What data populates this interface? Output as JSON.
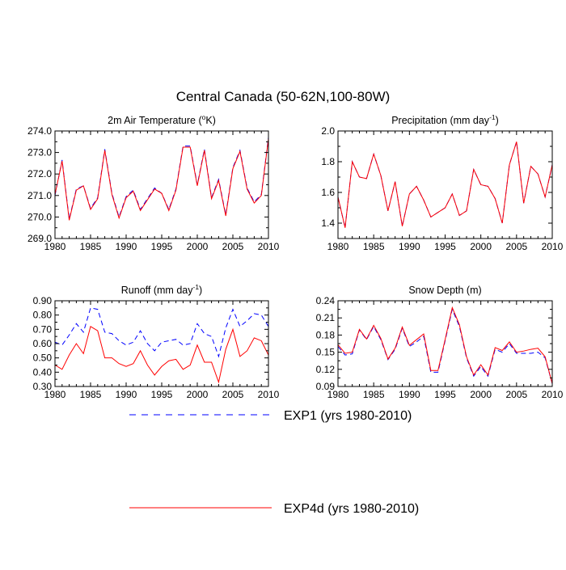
{
  "figure_title": "Central Canada (50-62N,100-80W)",
  "colors": {
    "exp1": "#0000ff",
    "exp4d": "#ff0000"
  },
  "legend": [
    {
      "key": "exp1",
      "label": "EXP1 (yrs 1980-2010)",
      "dash": true
    },
    {
      "key": "exp4d",
      "label": "EXP4d (yrs 1980-2010)",
      "dash": false
    }
  ],
  "chart_data": [
    {
      "id": "temp",
      "type": "line",
      "title_main": "2m Air Temperature (",
      "title_sup": "o",
      "title_tail": "K)",
      "xlim": [
        1980,
        2010
      ],
      "ylim": [
        269,
        274
      ],
      "xticks": [
        1980,
        1985,
        1990,
        1995,
        2000,
        2005,
        2010
      ],
      "yticks": [
        269,
        270,
        271,
        272,
        273,
        274
      ],
      "ytick_labels": [
        "269.0",
        "270.0",
        "271.0",
        "272.0",
        "273.0",
        "274.0"
      ],
      "x": [
        1980,
        1981,
        1982,
        1983,
        1984,
        1985,
        1986,
        1987,
        1988,
        1989,
        1990,
        1991,
        1992,
        1993,
        1994,
        1995,
        1996,
        1997,
        1998,
        1999,
        2000,
        2001,
        2002,
        2003,
        2004,
        2005,
        2006,
        2007,
        2008,
        2009,
        2010
      ],
      "series": [
        {
          "name": "EXP1 (yrs 1980-2010)",
          "key": "exp1",
          "values": [
            271.0,
            272.65,
            269.9,
            271.3,
            271.45,
            270.4,
            270.9,
            273.15,
            271.1,
            270.0,
            270.95,
            271.25,
            270.35,
            270.85,
            271.35,
            271.1,
            270.35,
            271.3,
            273.3,
            273.3,
            271.5,
            273.15,
            270.9,
            271.75,
            270.1,
            272.3,
            273.1,
            271.35,
            270.7,
            271.05,
            273.7
          ]
        },
        {
          "name": "EXP4d (yrs 1980-2010)",
          "key": "exp4d",
          "values": [
            271.05,
            272.6,
            269.85,
            271.25,
            271.45,
            270.35,
            270.85,
            273.1,
            271.05,
            269.95,
            270.9,
            271.2,
            270.3,
            270.8,
            271.3,
            271.1,
            270.3,
            271.25,
            273.25,
            273.25,
            271.45,
            273.1,
            270.85,
            271.7,
            270.05,
            272.25,
            273.05,
            271.3,
            270.65,
            271.0,
            273.65
          ]
        }
      ]
    },
    {
      "id": "precip",
      "type": "line",
      "title_main": "Precipitation (mm day",
      "title_sup": "-1",
      "title_tail": ")",
      "xlim": [
        1980,
        2010
      ],
      "ylim": [
        1.3,
        2.0
      ],
      "xticks": [
        1980,
        1985,
        1990,
        1995,
        2000,
        2005,
        2010
      ],
      "yticks": [
        1.4,
        1.6,
        1.8,
        2.0
      ],
      "ytick_labels": [
        "1.4",
        "1.6",
        "1.8",
        "2.0"
      ],
      "x": [
        1980,
        1981,
        1982,
        1983,
        1984,
        1985,
        1986,
        1987,
        1988,
        1989,
        1990,
        1991,
        1992,
        1993,
        1994,
        1995,
        1996,
        1997,
        1998,
        1999,
        2000,
        2001,
        2002,
        2003,
        2004,
        2005,
        2006,
        2007,
        2008,
        2009,
        2010
      ],
      "series": [
        {
          "name": "EXP1 (yrs 1980-2010)",
          "key": "exp1",
          "values": [
            1.57,
            1.37,
            1.8,
            1.7,
            1.69,
            1.85,
            1.71,
            1.48,
            1.67,
            1.38,
            1.59,
            1.64,
            1.55,
            1.44,
            1.47,
            1.5,
            1.59,
            1.45,
            1.48,
            1.75,
            1.65,
            1.64,
            1.56,
            1.4,
            1.78,
            1.93,
            1.53,
            1.77,
            1.72,
            1.57,
            1.78
          ]
        },
        {
          "name": "EXP4d (yrs 1980-2010)",
          "key": "exp4d",
          "values": [
            1.57,
            1.37,
            1.8,
            1.7,
            1.69,
            1.85,
            1.71,
            1.48,
            1.67,
            1.38,
            1.59,
            1.64,
            1.55,
            1.44,
            1.47,
            1.5,
            1.59,
            1.45,
            1.48,
            1.75,
            1.65,
            1.64,
            1.56,
            1.4,
            1.78,
            1.93,
            1.53,
            1.77,
            1.72,
            1.57,
            1.78
          ]
        }
      ]
    },
    {
      "id": "runoff",
      "type": "line",
      "title_main": "Runoff (mm day",
      "title_sup": "-1",
      "title_tail": ")",
      "xlim": [
        1980,
        2010
      ],
      "ylim": [
        0.3,
        0.9
      ],
      "xticks": [
        1980,
        1985,
        1990,
        1995,
        2000,
        2005,
        2010
      ],
      "yticks": [
        0.3,
        0.4,
        0.5,
        0.6,
        0.7,
        0.8,
        0.9
      ],
      "ytick_labels": [
        "0.30",
        "0.40",
        "0.50",
        "0.60",
        "0.70",
        "0.80",
        "0.90"
      ],
      "x": [
        1980,
        1981,
        1982,
        1983,
        1984,
        1985,
        1986,
        1987,
        1988,
        1989,
        1990,
        1991,
        1992,
        1993,
        1994,
        1995,
        1996,
        1997,
        1998,
        1999,
        2000,
        2001,
        2002,
        2003,
        2004,
        2005,
        2006,
        2007,
        2008,
        2009,
        2010
      ],
      "series": [
        {
          "name": "EXP1 (yrs 1980-2010)",
          "key": "exp1",
          "values": [
            0.61,
            0.59,
            0.66,
            0.74,
            0.68,
            0.85,
            0.84,
            0.68,
            0.67,
            0.62,
            0.59,
            0.61,
            0.69,
            0.6,
            0.55,
            0.61,
            0.62,
            0.63,
            0.59,
            0.6,
            0.74,
            0.67,
            0.65,
            0.51,
            0.71,
            0.84,
            0.72,
            0.76,
            0.81,
            0.8,
            0.72
          ]
        },
        {
          "name": "EXP4d (yrs 1980-2010)",
          "key": "exp4d",
          "values": [
            0.45,
            0.42,
            0.52,
            0.6,
            0.53,
            0.72,
            0.69,
            0.5,
            0.5,
            0.46,
            0.44,
            0.46,
            0.55,
            0.45,
            0.38,
            0.44,
            0.48,
            0.49,
            0.42,
            0.45,
            0.59,
            0.47,
            0.47,
            0.33,
            0.56,
            0.7,
            0.51,
            0.55,
            0.64,
            0.62,
            0.52
          ]
        }
      ]
    },
    {
      "id": "snow",
      "type": "line",
      "title_main": "Snow Depth (m)",
      "title_sup": "",
      "title_tail": "",
      "xlim": [
        1980,
        2010
      ],
      "ylim": [
        0.09,
        0.24
      ],
      "xticks": [
        1980,
        1985,
        1990,
        1995,
        2000,
        2005,
        2010
      ],
      "yticks": [
        0.09,
        0.12,
        0.15,
        0.18,
        0.21,
        0.24
      ],
      "ytick_labels": [
        "0.09",
        "0.12",
        "0.15",
        "0.18",
        "0.21",
        "0.24"
      ],
      "x": [
        1980,
        1981,
        1982,
        1983,
        1984,
        1985,
        1986,
        1987,
        1988,
        1989,
        1990,
        1991,
        1992,
        1993,
        1994,
        1995,
        1996,
        1997,
        1998,
        1999,
        2000,
        2001,
        2002,
        2003,
        2004,
        2005,
        2006,
        2007,
        2008,
        2009,
        2010
      ],
      "series": [
        {
          "name": "EXP1 (yrs 1980-2010)",
          "key": "exp1",
          "values": [
            0.16,
            0.145,
            0.147,
            0.189,
            0.172,
            0.195,
            0.172,
            0.137,
            0.155,
            0.192,
            0.16,
            0.168,
            0.178,
            0.115,
            0.115,
            0.17,
            0.225,
            0.195,
            0.14,
            0.108,
            0.125,
            0.108,
            0.155,
            0.15,
            0.165,
            0.148,
            0.148,
            0.148,
            0.15,
            0.14,
            0.095
          ]
        },
        {
          "name": "EXP4d (yrs 1980-2010)",
          "key": "exp4d",
          "values": [
            0.163,
            0.148,
            0.15,
            0.19,
            0.173,
            0.197,
            0.174,
            0.138,
            0.157,
            0.194,
            0.162,
            0.172,
            0.182,
            0.118,
            0.118,
            0.172,
            0.228,
            0.198,
            0.142,
            0.11,
            0.128,
            0.11,
            0.158,
            0.153,
            0.168,
            0.15,
            0.152,
            0.155,
            0.157,
            0.142,
            0.095
          ]
        }
      ]
    }
  ]
}
